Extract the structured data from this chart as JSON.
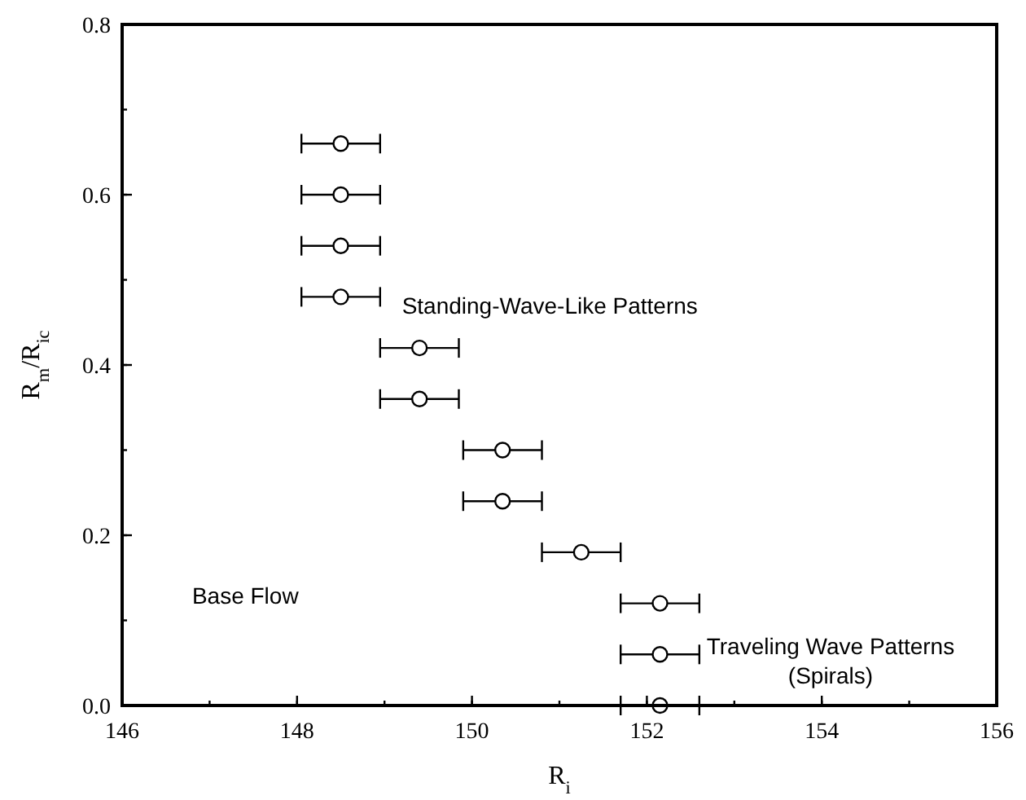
{
  "chart_data": {
    "type": "scatter",
    "xlabel": "R$_{i}$",
    "ylabel": "R$_{m}$/R$_{ic}$",
    "x": [
      148.5,
      148.5,
      148.5,
      148.5,
      149.4,
      149.4,
      150.35,
      150.35,
      151.25,
      152.15,
      152.15,
      152.15
    ],
    "values": [
      0.66,
      0.6,
      0.54,
      0.48,
      0.42,
      0.36,
      0.3,
      0.24,
      0.18,
      0.12,
      0.06,
      0.0
    ],
    "xerrors": [
      0.45,
      0.45,
      0.45,
      0.45,
      0.45,
      0.45,
      0.45,
      0.45,
      0.45,
      0.45,
      0.45,
      0.45
    ],
    "color": "#000000",
    "marker": "circle",
    "xlim": [
      146,
      156
    ],
    "xticks": [
      146,
      148,
      150,
      152,
      154,
      156
    ],
    "ylim": [
      0,
      0.8
    ],
    "yticks": [
      {
        "value": 0,
        "label": "0.0"
      },
      {
        "value": 0.2,
        "label": "0.2"
      },
      {
        "value": 0.4,
        "label": "0.4"
      },
      {
        "value": 0.6,
        "label": "0.6"
      },
      {
        "value": 0.8,
        "label": "0.8"
      }
    ],
    "annotations": [
      "Standing-Wave-Like Patterns",
      "Base Flow",
      "Traveling Wave Patterns\n(Spirals)"
    ],
    "grid": false
  }
}
